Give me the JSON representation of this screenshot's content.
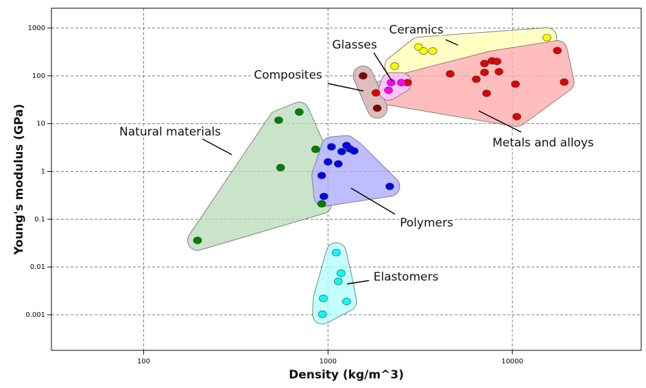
{
  "chart_data": {
    "type": "ashby",
    "x_label": "Density (kg/m^3)",
    "y_label": "Young's modulus (GPa)",
    "x_log": true,
    "y_log": true,
    "grid": true,
    "xlim": [
      31.6,
      50000
    ],
    "xticks": [
      100,
      1000,
      10000
    ],
    "ylim": [
      0.00018,
      2600
    ],
    "yticks": [
      1000,
      100,
      10,
      1,
      0.1,
      0.01,
      0.001
    ],
    "series": [
      {
        "name": "Ceramics",
        "color": "#ffff00",
        "region_color": "#ffffb0",
        "x": [
          2300,
          3100,
          3300,
          3700,
          15400
        ],
        "values": [
          160,
          400,
          330,
          330,
          630
        ]
      },
      {
        "name": "Metals and alloys",
        "color": "#e00000",
        "region_color": "#ffa8a8",
        "x": [
          2700,
          1820,
          4600,
          7060,
          7760,
          8250,
          7060,
          8460,
          6370,
          7250,
          10400,
          17540,
          19100,
          10570
        ],
        "values": [
          72,
          44,
          110,
          181,
          206,
          200,
          118,
          122,
          85,
          43,
          67,
          338,
          74,
          14
        ]
      },
      {
        "name": "Composites",
        "color": "#8b0000",
        "region_color": "#d4a8a8",
        "x": [
          1550,
          1850
        ],
        "values": [
          100,
          21
        ]
      },
      {
        "name": "Glasses",
        "color": "#ff00ff",
        "region_color": "#ffb0ff",
        "x": [
          2200,
          2500,
          2130
        ],
        "values": [
          72,
          72,
          50
        ]
      },
      {
        "name": "Natural materials",
        "color": "#008000",
        "region_color": "#b8dcb8",
        "x": [
          196,
          540,
          698,
          553,
          857,
          925
        ],
        "values": [
          0.036,
          11.8,
          17.5,
          1.2,
          2.9,
          0.21
        ]
      },
      {
        "name": "Polymers",
        "color": "#0000ee",
        "region_color": "#a8a8ff",
        "x": [
          1044,
          1187,
          1137,
          1000,
          925,
          950,
          2163,
          1316,
          1261,
          1385
        ],
        "values": [
          3.27,
          2.6,
          1.44,
          1.58,
          0.82,
          0.3,
          0.485,
          2.96,
          3.49,
          2.68
        ]
      },
      {
        "name": "Elastomers",
        "color": "#00ffff",
        "region_color": "#b0ffff",
        "x": [
          1108,
          1177,
          1137,
          1261,
          943,
          933
        ],
        "values": [
          0.02,
          0.0074,
          0.005,
          0.0019,
          0.0022,
          0.00103
        ]
      }
    ]
  }
}
